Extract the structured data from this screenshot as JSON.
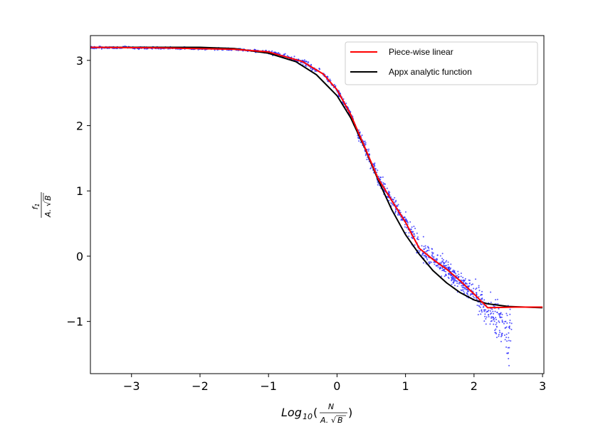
{
  "chart_data": {
    "type": "scatter",
    "xlabel": {
      "prefix": "Log",
      "subscript": "10",
      "frac_numerator": "N",
      "frac_denominator_a": "A.",
      "frac_denominator_sqrt": "√",
      "frac_denominator_b": "B"
    },
    "ylabel": {
      "numerator": "f",
      "numerator_sub": "1",
      "denominator_a": "A.",
      "denominator_sqrt": "√",
      "denominator_b": "B"
    },
    "xlim": [
      -3.6,
      3.02
    ],
    "ylim": [
      -1.8,
      3.38
    ],
    "x_ticks": [
      -3,
      -2,
      -1,
      0,
      1,
      2,
      3
    ],
    "x_tick_labels": [
      "−3",
      "−2",
      "−1",
      "0",
      "1",
      "2",
      "3"
    ],
    "y_ticks": [
      -1,
      0,
      1,
      2,
      3
    ],
    "y_tick_labels": [
      "−1",
      "0",
      "1",
      "2",
      "3"
    ],
    "grid": false,
    "legend_position": "top-right",
    "series": [
      {
        "name": "Piece-wise linear",
        "kind": "line",
        "color": "#ff0000",
        "x": [
          -3.6,
          -2.5,
          -1.5,
          -1.0,
          -0.5,
          -0.2,
          0.0,
          0.2,
          0.4,
          0.6,
          0.8,
          1.0,
          1.2,
          1.4,
          1.6,
          1.8,
          2.0,
          2.2,
          2.6,
          3.0
        ],
        "y": [
          3.2,
          3.19,
          3.17,
          3.13,
          2.98,
          2.79,
          2.55,
          2.17,
          1.68,
          1.19,
          0.85,
          0.52,
          0.12,
          -0.05,
          -0.2,
          -0.38,
          -0.58,
          -0.79,
          -0.78,
          -0.78
        ]
      },
      {
        "name": "Appx analytic function",
        "kind": "line",
        "color": "#000000",
        "x": [
          -3.6,
          -3.0,
          -2.5,
          -2.0,
          -1.5,
          -1.0,
          -0.6,
          -0.3,
          0.0,
          0.2,
          0.4,
          0.6,
          0.8,
          1.0,
          1.2,
          1.4,
          1.6,
          1.8,
          2.0,
          2.2,
          2.5,
          3.0
        ],
        "y": [
          3.2,
          3.2,
          3.2,
          3.2,
          3.18,
          3.11,
          2.98,
          2.78,
          2.46,
          2.12,
          1.67,
          1.17,
          0.71,
          0.33,
          0.03,
          -0.22,
          -0.41,
          -0.56,
          -0.67,
          -0.73,
          -0.77,
          -0.79
        ]
      },
      {
        "name": "",
        "kind": "scatter",
        "color": "#1f1fff",
        "x_range": [
          -3.6,
          2.55
        ],
        "y_range": [
          -1.75,
          3.23
        ]
      }
    ]
  }
}
